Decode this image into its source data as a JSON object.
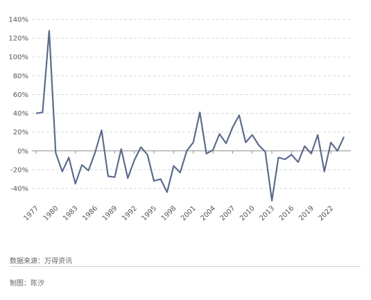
{
  "chart_data": {
    "type": "line",
    "title": "",
    "xlabel": "",
    "ylabel": "",
    "x": [
      1977,
      1978,
      1979,
      1980,
      1981,
      1982,
      1983,
      1984,
      1985,
      1986,
      1987,
      1988,
      1989,
      1990,
      1991,
      1992,
      1993,
      1994,
      1995,
      1996,
      1997,
      1998,
      1999,
      2000,
      2001,
      2002,
      2003,
      2004,
      2005,
      2006,
      2007,
      2008,
      2009,
      2010,
      2011,
      2012,
      2013,
      2014,
      2015,
      2016,
      2017,
      2018,
      2019,
      2020,
      2021,
      2022,
      2023,
      2024
    ],
    "series": [
      {
        "values": [
          40,
          41,
          128,
          -2,
          -22,
          -7,
          -35,
          -15,
          -21,
          -2,
          22,
          -27,
          -28,
          2,
          -29,
          -10,
          4,
          -4,
          -32,
          -30,
          -44,
          -16,
          -23,
          0,
          9,
          41,
          -3,
          1,
          18,
          8,
          25,
          38,
          9,
          17,
          6,
          -1,
          -53,
          -7,
          -9,
          -4,
          -12,
          5,
          -3,
          17,
          -22,
          9,
          0,
          15
        ]
      }
    ],
    "x_ticks": [
      "1977",
      "1980",
      "1983",
      "1986",
      "1989",
      "1992",
      "1995",
      "1998",
      "2001",
      "2004",
      "2007",
      "2010",
      "2013",
      "2016",
      "2019",
      "2022"
    ],
    "y_ticks": [
      "140%",
      "120%",
      "100%",
      "80%",
      "60%",
      "40%",
      "20%",
      "0%",
      "-20%",
      "-40%"
    ],
    "y_tick_values": [
      140,
      120,
      100,
      80,
      60,
      40,
      20,
      0,
      -20,
      -40
    ],
    "ylim": [
      -40,
      140
    ],
    "grid": true,
    "line_color": "#5b6b8c",
    "grid_color": "#d9d9d9",
    "zero_line_color": "#8c8c8c"
  },
  "footer": {
    "source": "数据来源：万得资讯",
    "maker": "制图：陈汐"
  }
}
